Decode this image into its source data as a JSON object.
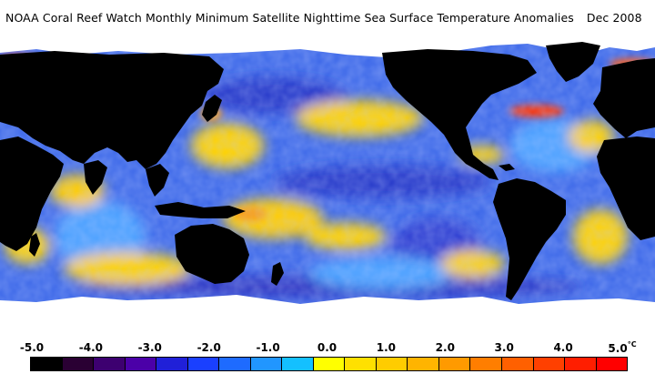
{
  "title": {
    "main": "NOAA Coral Reef Watch Monthly Minimum Satellite Nighttime Sea Surface Temperature Anomalies",
    "date": "Dec 2008"
  },
  "legend": {
    "tick_labels": [
      "-5.0",
      "-4.0",
      "-3.0",
      "-2.0",
      "-1.0",
      "0.0",
      "1.0",
      "2.0",
      "3.0",
      "4.0",
      "5.0"
    ],
    "unit": "°C",
    "colors": [
      "#000000",
      "#2a0033",
      "#3d0070",
      "#4b00a8",
      "#2020d8",
      "#1a40ff",
      "#1e6bff",
      "#2196ff",
      "#14c0ff",
      "#ffff00",
      "#ffe000",
      "#ffcc00",
      "#ffb400",
      "#ff9a00",
      "#ff7e00",
      "#ff6000",
      "#ff4000",
      "#ff1e00",
      "#ff0000"
    ]
  },
  "map_colors": {
    "land": "#000000",
    "ice": "#ffffff",
    "ocean_base": "#3a66e8",
    "ocean_deep": "#2434c8",
    "ocean_light": "#4aa0ff",
    "warm": "#ffd200",
    "warmer": "#ff9a00",
    "hot": "#ff3000"
  }
}
